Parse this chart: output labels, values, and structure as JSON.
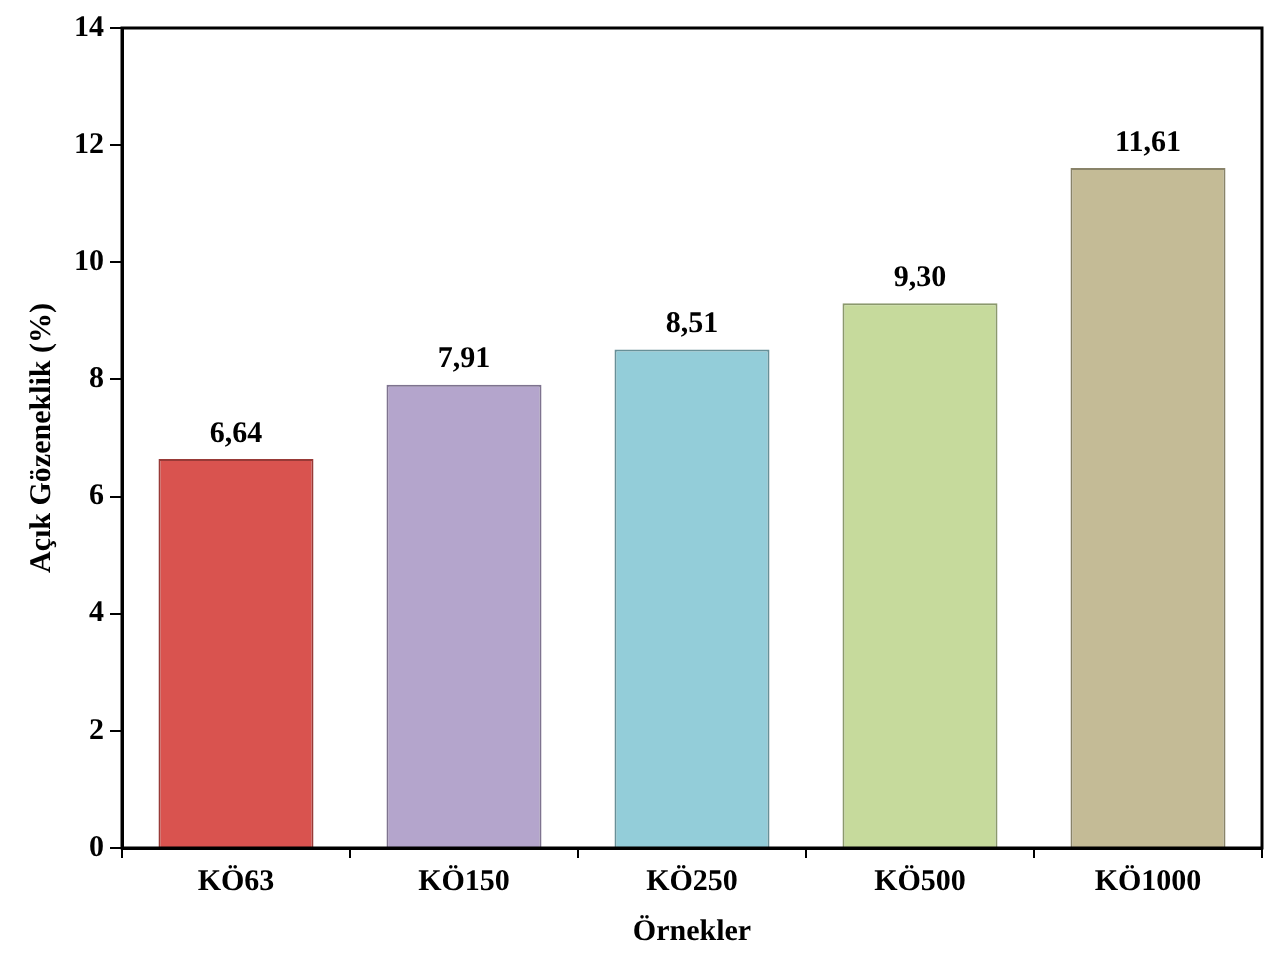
{
  "chart_data": {
    "type": "bar",
    "xlabel": "Örnekler",
    "ylabel": "Açık Gözeneklik (%)",
    "categories": [
      "KÖ63",
      "KÖ150",
      "KÖ250",
      "KÖ500",
      "KÖ1000"
    ],
    "values": [
      6.64,
      7.91,
      8.51,
      9.3,
      11.61
    ],
    "colors": [
      "#d9534f",
      "#b4a5cc",
      "#93cdd9",
      "#c6da9c",
      "#c4bb96"
    ],
    "value_labels": [
      "6,64",
      "7,91",
      "8,51",
      "9,30",
      "11,61"
    ],
    "ylim": [
      0,
      14
    ],
    "yticks": [
      0,
      2,
      4,
      6,
      8,
      10,
      12,
      14
    ],
    "grid": false,
    "legend": false
  }
}
